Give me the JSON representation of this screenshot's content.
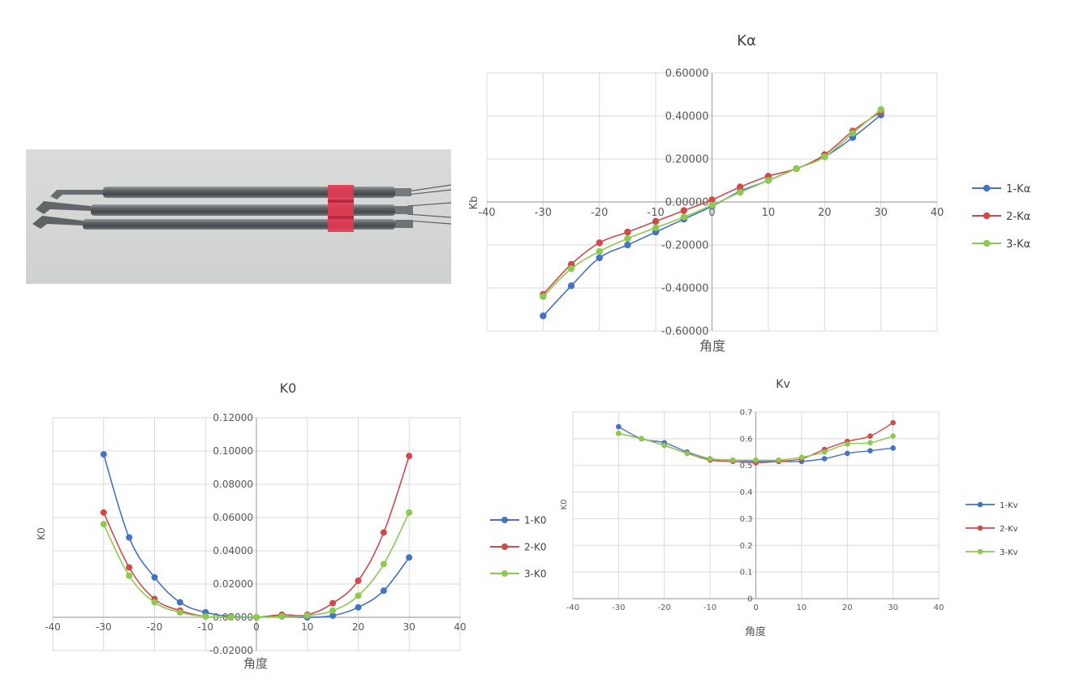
{
  "chart_data": [
    {
      "type": "line",
      "title": "Kα",
      "xlabel": "角度",
      "ylabel": "Kb",
      "xlim": [
        -40,
        40
      ],
      "ylim": [
        -0.6,
        0.6
      ],
      "xticks": [
        "-40",
        "-30",
        "-20",
        "-10",
        "0",
        "10",
        "20",
        "30",
        "40"
      ],
      "yticks": [
        "-0.60000",
        "-0.40000",
        "-0.20000",
        "0.00000",
        "0.20000",
        "0.40000",
        "0.60000"
      ],
      "grid": true,
      "legend_position": "right",
      "x": [
        -30,
        -25,
        -20,
        -15,
        -10,
        -5,
        0,
        5,
        10,
        15,
        20,
        25,
        30
      ],
      "series": [
        {
          "name": "1-Kα",
          "color": "#4472c4",
          "values": [
            -0.53,
            -0.39,
            -0.26,
            -0.2,
            -0.14,
            -0.08,
            -0.02,
            0.05,
            0.1,
            0.155,
            0.21,
            0.3,
            0.405
          ]
        },
        {
          "name": "2-Kα",
          "color": "#d04a4a",
          "values": [
            -0.43,
            -0.29,
            -0.19,
            -0.14,
            -0.09,
            -0.04,
            0.01,
            0.07,
            0.12,
            0.155,
            0.22,
            0.33,
            0.42
          ]
        },
        {
          "name": "3-Kα",
          "color": "#8dc94e",
          "values": [
            -0.44,
            -0.31,
            -0.23,
            -0.17,
            -0.12,
            -0.07,
            -0.015,
            0.045,
            0.1,
            0.155,
            0.21,
            0.32,
            0.43
          ]
        }
      ]
    },
    {
      "type": "line",
      "title": "K0",
      "xlabel": "角度",
      "ylabel": "K0",
      "xlim": [
        -40,
        40
      ],
      "ylim": [
        -0.02,
        0.12
      ],
      "xticks": [
        "-40",
        "-30",
        "-20",
        "-10",
        "0",
        "10",
        "20",
        "30",
        "40"
      ],
      "yticks": [
        "-0.02000",
        "0.00000",
        "0.02000",
        "0.04000",
        "0.06000",
        "0.08000",
        "0.10000",
        "0.12000"
      ],
      "grid": true,
      "legend_position": "right",
      "x": [
        -30,
        -25,
        -20,
        -15,
        -10,
        -5,
        0,
        5,
        10,
        15,
        20,
        25,
        30
      ],
      "series": [
        {
          "name": "1-K0",
          "color": "#4472c4",
          "values": [
            0.098,
            0.048,
            0.024,
            0.009,
            0.003,
            0.0005,
            0.0,
            0.0005,
            0.0,
            0.001,
            0.006,
            0.016,
            0.036
          ]
        },
        {
          "name": "2-K0",
          "color": "#d04a4a",
          "values": [
            0.063,
            0.03,
            0.011,
            0.004,
            0.0005,
            0.0,
            0.0,
            0.0015,
            0.0015,
            0.0085,
            0.022,
            0.051,
            0.097
          ]
        },
        {
          "name": "3-K0",
          "color": "#8dc94e",
          "values": [
            0.056,
            0.025,
            0.009,
            0.003,
            0.0005,
            0.0,
            0.0,
            0.0005,
            0.001,
            0.004,
            0.013,
            0.032,
            0.063
          ]
        }
      ]
    },
    {
      "type": "line",
      "title": "Kv",
      "xlabel": "角度",
      "ylabel": "K0",
      "xlim": [
        -40,
        40
      ],
      "ylim": [
        0,
        0.7
      ],
      "xticks": [
        "-40",
        "-30",
        "-20",
        "-10",
        "0",
        "10",
        "20",
        "30",
        "40"
      ],
      "yticks": [
        "0",
        "0.1",
        "0.2",
        "0.3",
        "0.4",
        "0.5",
        "0.6",
        "0.7"
      ],
      "grid": true,
      "legend_position": "right",
      "x": [
        -30,
        -25,
        -20,
        -15,
        -10,
        -5,
        0,
        5,
        10,
        15,
        20,
        25,
        30
      ],
      "series": [
        {
          "name": "1-Kv",
          "color": "#4472c4",
          "values": [
            0.645,
            0.6,
            0.585,
            0.55,
            0.525,
            0.52,
            0.515,
            0.515,
            0.515,
            0.525,
            0.545,
            0.555,
            0.565
          ]
        },
        {
          "name": "2-Kv",
          "color": "#d04a4a",
          "values": [
            0.62,
            0.6,
            0.575,
            0.545,
            0.52,
            0.515,
            0.51,
            0.515,
            0.525,
            0.56,
            0.59,
            0.61,
            0.66
          ]
        },
        {
          "name": "3-Kv",
          "color": "#8dc94e",
          "values": [
            0.62,
            0.6,
            0.575,
            0.545,
            0.525,
            0.52,
            0.52,
            0.52,
            0.53,
            0.55,
            0.58,
            0.585,
            0.61
          ]
        }
      ]
    }
  ]
}
